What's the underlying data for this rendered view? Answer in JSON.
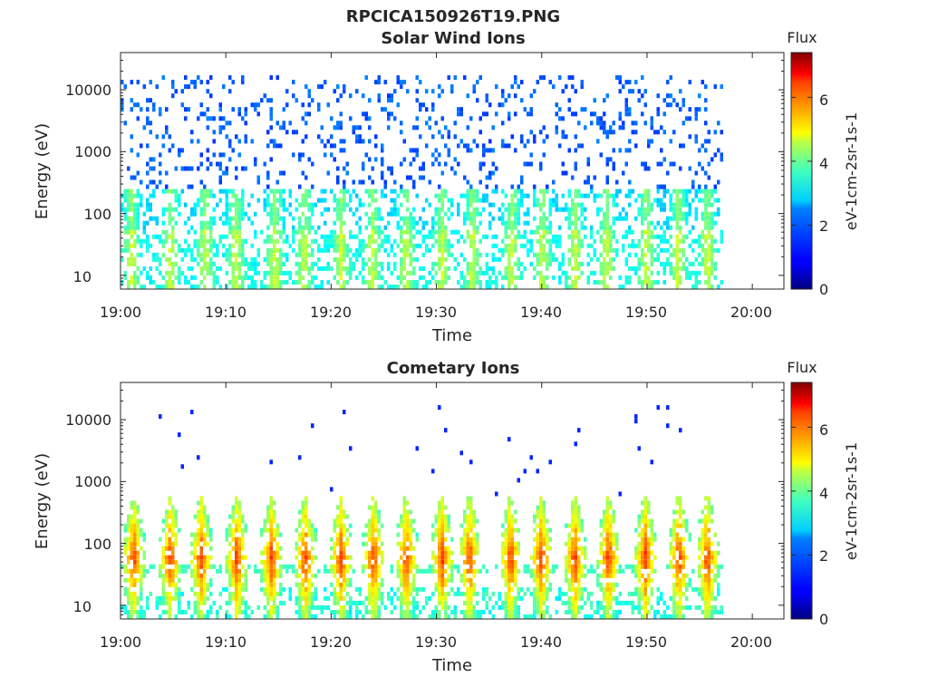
{
  "figure": {
    "title": "RPCICA150926T19.PNG"
  },
  "colorbar": {
    "label": "Flux",
    "axis_label": "eV-1cm-2sr-1s-1",
    "ticks": [
      "0",
      "2",
      "4",
      "6"
    ],
    "range": [
      0,
      7.4
    ],
    "colormap": "jet"
  },
  "chart_data": [
    {
      "type": "heatmap",
      "title": "Solar Wind Ions",
      "xlabel": "Time",
      "ylabel": "Energy (eV)",
      "x_ticks": [
        "19:00",
        "19:10",
        "19:20",
        "19:30",
        "19:40",
        "19:50",
        "20:00"
      ],
      "x_tick_minutes": [
        0,
        10,
        20,
        30,
        40,
        50,
        60
      ],
      "xlim_minutes": [
        0,
        63
      ],
      "y_ticks": [
        "10",
        "100",
        "1000",
        "10000"
      ],
      "y_tick_values": [
        10,
        100,
        1000,
        10000
      ],
      "ylim": [
        6,
        40000
      ],
      "y_scale": "log",
      "data_end_minute": 57.2,
      "bursts_minute": [
        0.9,
        4.6,
        7.9,
        10.8,
        14.5,
        17.3,
        20.8,
        23.8,
        27.0,
        30.4,
        33.3,
        37.0,
        39.9,
        43.0,
        46.0,
        49.8,
        52.8,
        55.6
      ],
      "pattern": "sparse dark-blue/blue pixels from ~150 eV to ~15000 eV; cyan-green bands 50-300 eV during bursts; green/yellow near 40 eV around 19:01-19:03 and 19:53-19:56"
    },
    {
      "type": "heatmap",
      "title": "Cometary Ions",
      "xlabel": "Time",
      "ylabel": "Energy (eV)",
      "x_ticks": [
        "19:00",
        "19:10",
        "19:20",
        "19:30",
        "19:40",
        "19:50",
        "20:00"
      ],
      "x_tick_minutes": [
        0,
        10,
        20,
        30,
        40,
        50,
        60
      ],
      "xlim_minutes": [
        0,
        63
      ],
      "y_ticks": [
        "10",
        "100",
        "1000",
        "10000"
      ],
      "y_tick_values": [
        10,
        100,
        1000,
        10000
      ],
      "ylim": [
        6,
        40000
      ],
      "y_scale": "log",
      "data_end_minute": 57.2,
      "bursts_minute": [
        1.1,
        4.6,
        7.5,
        10.9,
        14.2,
        17.4,
        20.8,
        23.9,
        27.0,
        30.4,
        33.0,
        36.9,
        39.8,
        43.0,
        46.2,
        49.7,
        52.9,
        55.6
      ],
      "pattern": "vertical plume per burst from ~7 eV to ~500 eV, yellow-orange cores at 40-120 eV, red at ~40 eV; sparse blue dots up to ~13000 eV"
    }
  ]
}
